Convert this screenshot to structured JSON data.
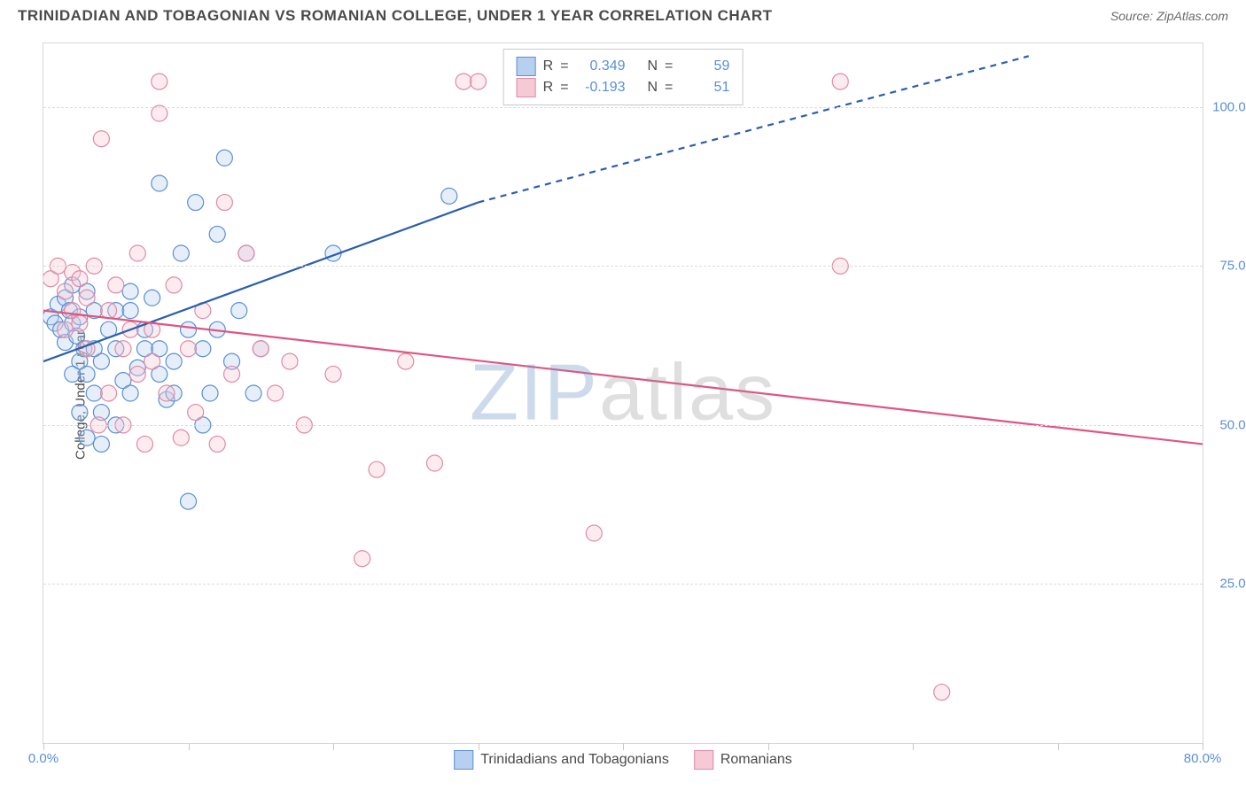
{
  "header": {
    "title": "TRINIDADIAN AND TOBAGONIAN VS ROMANIAN COLLEGE, UNDER 1 YEAR CORRELATION CHART",
    "source": "Source: ZipAtlas.com"
  },
  "chart": {
    "type": "scatter",
    "ylabel": "College, Under 1 year",
    "xlim": [
      0,
      80
    ],
    "ylim": [
      0,
      110
    ],
    "x_ticks": [
      0,
      10,
      20,
      30,
      40,
      50,
      60,
      70,
      80
    ],
    "x_tick_labels": {
      "0": "0.0%",
      "80": "80.0%"
    },
    "y_ticks": [
      25,
      50,
      75,
      100
    ],
    "y_tick_labels": {
      "25": "25.0%",
      "50": "50.0%",
      "75": "75.0%",
      "100": "100.0%"
    },
    "background_color": "#ffffff",
    "grid_color": "#dcdcdc",
    "marker_radius": 9,
    "marker_stroke_width": 1.2,
    "marker_fill_opacity": 0.35,
    "series": [
      {
        "name": "Trinidadians and Tobagonians",
        "color_fill": "#b8d0ef",
        "color_stroke": "#5a8fd6",
        "R": "0.349",
        "N": "59",
        "regression": {
          "x1": 0,
          "y1": 60,
          "x2": 30,
          "y2": 85,
          "x_dash_to": 68,
          "y_dash_to": 108,
          "color": "#2a5fb0",
          "width": 2.2
        },
        "points": [
          [
            0.5,
            67
          ],
          [
            0.8,
            66
          ],
          [
            1.0,
            69
          ],
          [
            1.2,
            65
          ],
          [
            1.5,
            70
          ],
          [
            1.5,
            63
          ],
          [
            1.8,
            68
          ],
          [
            2.0,
            66
          ],
          [
            2.0,
            72
          ],
          [
            2.3,
            64
          ],
          [
            2.5,
            67
          ],
          [
            2.5,
            60
          ],
          [
            2.8,
            62
          ],
          [
            3.0,
            58
          ],
          [
            3.0,
            71
          ],
          [
            3.5,
            55
          ],
          [
            3.5,
            68
          ],
          [
            4.0,
            60
          ],
          [
            4.0,
            52
          ],
          [
            4.5,
            65
          ],
          [
            5.0,
            50
          ],
          [
            5.0,
            62
          ],
          [
            5.5,
            57
          ],
          [
            6.0,
            55
          ],
          [
            6.0,
            71
          ],
          [
            6.5,
            59
          ],
          [
            7.0,
            62
          ],
          [
            7.5,
            70
          ],
          [
            8.0,
            58
          ],
          [
            8.0,
            88
          ],
          [
            8.5,
            54
          ],
          [
            9.0,
            60
          ],
          [
            9.5,
            77
          ],
          [
            10.0,
            65
          ],
          [
            10.0,
            38
          ],
          [
            10.5,
            85
          ],
          [
            11.0,
            62
          ],
          [
            11.5,
            55
          ],
          [
            12.0,
            80
          ],
          [
            12.5,
            92
          ],
          [
            13.0,
            60
          ],
          [
            13.5,
            68
          ],
          [
            14.0,
            77
          ],
          [
            14.5,
            55
          ],
          [
            15.0,
            62
          ],
          [
            11.0,
            50
          ],
          [
            12.0,
            65
          ],
          [
            20.0,
            77
          ],
          [
            28.0,
            86
          ],
          [
            3.0,
            48
          ],
          [
            4.0,
            47
          ],
          [
            2.0,
            58
          ],
          [
            3.5,
            62
          ],
          [
            5.0,
            68
          ],
          [
            6.0,
            68
          ],
          [
            7.0,
            65
          ],
          [
            8.0,
            62
          ],
          [
            9.0,
            55
          ],
          [
            2.5,
            52
          ]
        ]
      },
      {
        "name": "Romanians",
        "color_fill": "#f5c9d5",
        "color_stroke": "#e08aa5",
        "R": "-0.193",
        "N": "51",
        "regression": {
          "x1": 0,
          "y1": 68,
          "x2": 80,
          "y2": 47,
          "color": "#e05580",
          "width": 2.2
        },
        "points": [
          [
            0.5,
            73
          ],
          [
            1.0,
            75
          ],
          [
            1.5,
            71
          ],
          [
            2.0,
            68
          ],
          [
            2.0,
            74
          ],
          [
            2.5,
            66
          ],
          [
            3.0,
            70
          ],
          [
            3.0,
            62
          ],
          [
            3.5,
            75
          ],
          [
            4.0,
            95
          ],
          [
            4.5,
            68
          ],
          [
            5.0,
            72
          ],
          [
            5.5,
            50
          ],
          [
            6.0,
            65
          ],
          [
            6.5,
            77
          ],
          [
            7.0,
            47
          ],
          [
            7.5,
            60
          ],
          [
            8.0,
            99
          ],
          [
            8.5,
            55
          ],
          [
            9.0,
            72
          ],
          [
            9.5,
            48
          ],
          [
            10.0,
            62
          ],
          [
            10.5,
            52
          ],
          [
            11.0,
            68
          ],
          [
            12.0,
            47
          ],
          [
            12.5,
            85
          ],
          [
            13.0,
            58
          ],
          [
            14.0,
            77
          ],
          [
            15.0,
            62
          ],
          [
            16.0,
            55
          ],
          [
            8.0,
            104
          ],
          [
            17.0,
            60
          ],
          [
            18.0,
            50
          ],
          [
            20.0,
            58
          ],
          [
            22.0,
            29
          ],
          [
            23.0,
            43
          ],
          [
            25.0,
            60
          ],
          [
            27.0,
            44
          ],
          [
            29.0,
            104
          ],
          [
            30.0,
            104
          ],
          [
            38.0,
            33
          ],
          [
            55.0,
            104
          ],
          [
            55.0,
            75
          ],
          [
            62.0,
            8
          ],
          [
            3.8,
            50
          ],
          [
            4.5,
            55
          ],
          [
            5.5,
            62
          ],
          [
            6.5,
            58
          ],
          [
            7.5,
            65
          ],
          [
            1.5,
            65
          ],
          [
            2.5,
            73
          ]
        ]
      }
    ],
    "legend_box": {
      "R_label": "R",
      "N_label": "N",
      "equals": "="
    },
    "watermark": {
      "z": "ZIP",
      "rest": "atlas"
    }
  }
}
